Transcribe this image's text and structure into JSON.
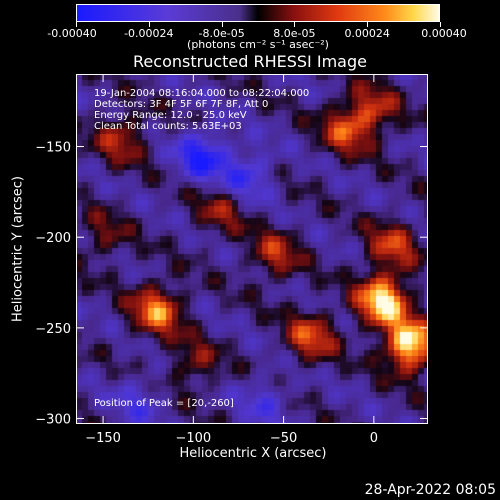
{
  "colorbar": {
    "ticks": [
      "-0.00040",
      "-0.00024",
      "-8.0e-05",
      "8.0e-05",
      "0.00024",
      "0.00040"
    ],
    "unit": "(photons cm⁻² s⁻¹ asec⁻²)"
  },
  "chart_data": {
    "type": "heatmap",
    "title": "Reconstructed RHESSI Image",
    "xlabel": "Heliocentric X (arcsec)",
    "ylabel": "Heliocentric Y (arcsec)",
    "xlim": [
      -165,
      30
    ],
    "ylim": [
      -303,
      -110
    ],
    "xticks": [
      -150,
      -100,
      -50,
      0
    ],
    "yticks": [
      -150,
      -200,
      -250,
      -300
    ],
    "xtick_labels": [
      "−150",
      "−100",
      "−50",
      "0"
    ],
    "ytick_labels": [
      "−150",
      "−200",
      "−250",
      "−300"
    ],
    "value_range": [
      -0.0004,
      0.0004
    ],
    "colors": {
      "negative": "#1a1aff",
      "zero": "#000000",
      "mid_positive": "#e03a10",
      "peak": "#fffbe6"
    },
    "bright_sources": [
      {
        "x": 20,
        "y": -260,
        "level": 1.0
      },
      {
        "x": 5,
        "y": -235,
        "level": 0.95
      },
      {
        "x": -120,
        "y": -240,
        "level": 0.7
      },
      {
        "x": -35,
        "y": -255,
        "level": 0.55
      },
      {
        "x": -15,
        "y": -140,
        "level": 0.55
      },
      {
        "x": 10,
        "y": -205,
        "level": 0.5
      },
      {
        "x": -140,
        "y": -145,
        "level": 0.45
      },
      {
        "x": -55,
        "y": -210,
        "level": 0.45
      },
      {
        "x": 0,
        "y": -130,
        "level": 0.45
      },
      {
        "x": -100,
        "y": -270,
        "level": 0.35
      },
      {
        "x": -85,
        "y": -185,
        "level": 0.35
      },
      {
        "x": -150,
        "y": -200,
        "level": 0.3
      }
    ],
    "dim_regions": [
      {
        "x": -95,
        "y": -155,
        "level": -0.6
      },
      {
        "x": -70,
        "y": -165,
        "level": -0.45
      },
      {
        "x": -130,
        "y": -290,
        "level": -0.3
      },
      {
        "x": -60,
        "y": -290,
        "level": -0.3
      }
    ],
    "annotations": [
      "19-Jan-2004 08:16:04.000 to 08:22:04.000",
      "Detectors: 3F 4F 5F 6F 7F 8F, Att 0",
      "Energy Range: 12.0 - 25.0 keV",
      "Clean     Total counts: 5.63E+03"
    ],
    "peak_text": "Position of Peak = [20,-260]"
  },
  "timestamp": "28-Apr-2022 08:05"
}
